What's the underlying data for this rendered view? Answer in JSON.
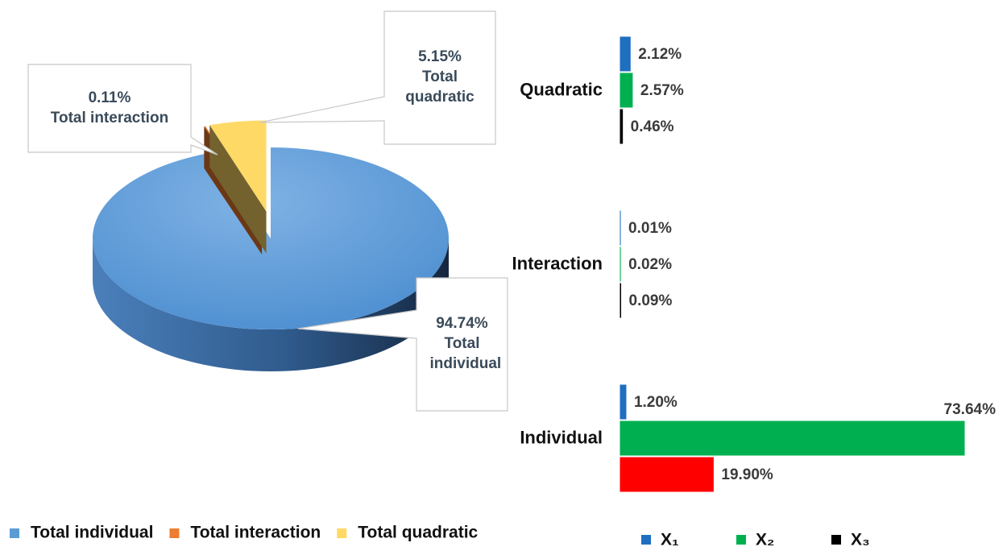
{
  "chart_data": [
    {
      "type": "pie3d",
      "categories": [
        "Total individual",
        "Total interaction",
        "Total quadratic"
      ],
      "values": [
        94.74,
        0.11,
        5.15
      ],
      "value_labels": [
        "94.74%",
        "0.11%",
        "5.15%"
      ],
      "colors": [
        "#5b9bd5",
        "#ed7d31",
        "#ffd966"
      ],
      "legend": "bottom"
    },
    {
      "type": "hbar",
      "categories": [
        "Quadratic",
        "Interaction",
        "Individual"
      ],
      "series": [
        {
          "name": "X₁",
          "color": "#1f6fc0",
          "values": [
            2.12,
            0.01,
            1.2
          ],
          "value_labels": [
            "2.12%",
            "0.01%",
            "1.20%"
          ]
        },
        {
          "name": "X₂",
          "color": "#00b050",
          "values": [
            2.57,
            0.02,
            73.64
          ],
          "value_labels": [
            "2.57%",
            "0.02%",
            "73.64%"
          ]
        },
        {
          "name": "X₃",
          "color": "#000000",
          "point_colors": [
            "#000000",
            "#000000",
            "#ff0000"
          ],
          "values": [
            0.46,
            0.09,
            19.9
          ],
          "value_labels": [
            "0.46%",
            "0.09%",
            "19.90%"
          ]
        }
      ],
      "legend": "bottom"
    }
  ]
}
